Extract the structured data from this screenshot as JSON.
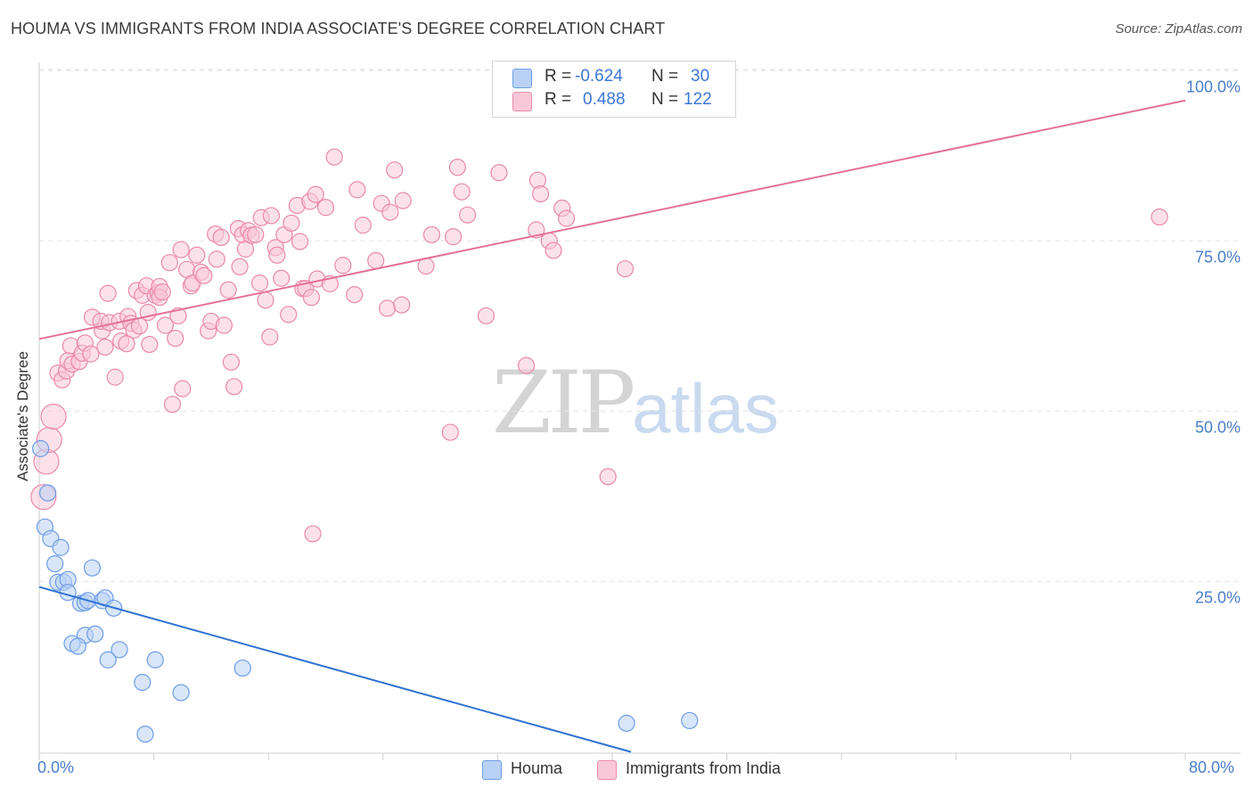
{
  "title": "HOUMA VS IMMIGRANTS FROM INDIA ASSOCIATE'S DEGREE CORRELATION CHART",
  "source": "Source: ZipAtlas.com",
  "watermark": {
    "zip": "ZIP",
    "atlas": "atlas"
  },
  "stats": {
    "rows": [
      {
        "r_label": "R =",
        "r_value": "-0.624",
        "n_label": "N =",
        "n_value": "30"
      },
      {
        "r_label": "R =",
        "r_value": "0.488",
        "n_label": "N =",
        "n_value": "122"
      }
    ]
  },
  "legend": {
    "items": [
      {
        "label": "Houma"
      },
      {
        "label": "Immigrants from India"
      }
    ]
  },
  "colors": {
    "houma_fill": "#b9d1f4",
    "houma_stroke": "#6d9de6",
    "houma_line": "#2f72d2",
    "india_fill": "#f9c8d8",
    "india_stroke": "#ea8aaa",
    "india_line": "#e4709a",
    "tick": "#4a7ec9",
    "grid": "#e3e3e3"
  },
  "chart_data": {
    "type": "scatter",
    "title": "HOUMA VS IMMIGRANTS FROM INDIA ASSOCIATE'S DEGREE CORRELATION CHART",
    "xlabel": "",
    "ylabel": "Associate's Degree",
    "xlim": [
      0,
      80
    ],
    "ylim": [
      0,
      102
    ],
    "x_tick_labels": [
      "0.0%",
      "80.0%"
    ],
    "y_tick_labels": [
      "100.0%",
      "75.0%",
      "50.0%",
      "25.0%"
    ],
    "y_ticks": [
      100,
      75,
      50,
      25
    ],
    "grid": true,
    "legend_position": "bottom-center",
    "series": [
      {
        "name": "Houma",
        "r": -0.624,
        "n": 30,
        "trend": {
          "x": [
            0,
            41.3
          ],
          "y": [
            24.2,
            0
          ]
        },
        "points": [
          {
            "x": 0.1,
            "y": 44.5
          },
          {
            "x": 0.6,
            "y": 38.0
          },
          {
            "x": 0.4,
            "y": 33.0
          },
          {
            "x": 0.8,
            "y": 31.3
          },
          {
            "x": 1.5,
            "y": 30.0
          },
          {
            "x": 1.1,
            "y": 27.6
          },
          {
            "x": 3.7,
            "y": 27.0
          },
          {
            "x": 1.3,
            "y": 24.9
          },
          {
            "x": 1.7,
            "y": 24.9
          },
          {
            "x": 2.0,
            "y": 25.3
          },
          {
            "x": 2.0,
            "y": 23.4
          },
          {
            "x": 2.9,
            "y": 21.8
          },
          {
            "x": 3.2,
            "y": 21.9
          },
          {
            "x": 3.4,
            "y": 22.2
          },
          {
            "x": 4.4,
            "y": 22.2
          },
          {
            "x": 4.6,
            "y": 22.6
          },
          {
            "x": 5.2,
            "y": 21.1
          },
          {
            "x": 3.2,
            "y": 17.1
          },
          {
            "x": 3.9,
            "y": 17.3
          },
          {
            "x": 2.3,
            "y": 15.9
          },
          {
            "x": 2.7,
            "y": 15.5
          },
          {
            "x": 5.6,
            "y": 15.0
          },
          {
            "x": 4.8,
            "y": 13.5
          },
          {
            "x": 8.1,
            "y": 13.5
          },
          {
            "x": 14.2,
            "y": 12.3
          },
          {
            "x": 7.2,
            "y": 10.2
          },
          {
            "x": 9.9,
            "y": 8.7
          },
          {
            "x": 7.4,
            "y": 2.6
          },
          {
            "x": 41.0,
            "y": 4.2
          },
          {
            "x": 45.4,
            "y": 4.6
          }
        ]
      },
      {
        "name": "Immigrants from India",
        "r": 0.488,
        "n": 122,
        "trend": {
          "x": [
            0,
            80
          ],
          "y": [
            60.6,
            95.6
          ]
        },
        "points": [
          {
            "x": 0.3,
            "y": 37.4
          },
          {
            "x": 0.5,
            "y": 42.6
          },
          {
            "x": 0.7,
            "y": 45.8
          },
          {
            "x": 1.0,
            "y": 49.2
          },
          {
            "x": 1.3,
            "y": 55.6
          },
          {
            "x": 1.6,
            "y": 54.6
          },
          {
            "x": 1.9,
            "y": 55.9
          },
          {
            "x": 2.0,
            "y": 57.4
          },
          {
            "x": 2.3,
            "y": 56.9
          },
          {
            "x": 2.2,
            "y": 59.6
          },
          {
            "x": 2.8,
            "y": 57.3
          },
          {
            "x": 3.0,
            "y": 58.5
          },
          {
            "x": 3.2,
            "y": 60.0
          },
          {
            "x": 3.6,
            "y": 58.4
          },
          {
            "x": 3.7,
            "y": 63.8
          },
          {
            "x": 4.4,
            "y": 61.8
          },
          {
            "x": 4.3,
            "y": 63.2
          },
          {
            "x": 4.9,
            "y": 63.0
          },
          {
            "x": 4.6,
            "y": 59.4
          },
          {
            "x": 4.8,
            "y": 67.3
          },
          {
            "x": 5.3,
            "y": 55.0
          },
          {
            "x": 5.6,
            "y": 63.2
          },
          {
            "x": 5.7,
            "y": 60.3
          },
          {
            "x": 6.1,
            "y": 59.9
          },
          {
            "x": 6.2,
            "y": 63.9
          },
          {
            "x": 6.4,
            "y": 62.9
          },
          {
            "x": 6.6,
            "y": 61.9
          },
          {
            "x": 6.8,
            "y": 67.7
          },
          {
            "x": 7.0,
            "y": 62.5
          },
          {
            "x": 7.2,
            "y": 67.0
          },
          {
            "x": 7.5,
            "y": 68.4
          },
          {
            "x": 7.6,
            "y": 64.5
          },
          {
            "x": 7.7,
            "y": 59.8
          },
          {
            "x": 8.1,
            "y": 67.0
          },
          {
            "x": 8.3,
            "y": 67.4
          },
          {
            "x": 8.4,
            "y": 68.3
          },
          {
            "x": 8.4,
            "y": 66.7
          },
          {
            "x": 8.6,
            "y": 67.5
          },
          {
            "x": 8.8,
            "y": 62.6
          },
          {
            "x": 9.1,
            "y": 71.8
          },
          {
            "x": 9.3,
            "y": 51.0
          },
          {
            "x": 9.5,
            "y": 60.7
          },
          {
            "x": 9.7,
            "y": 64.0
          },
          {
            "x": 9.9,
            "y": 73.7
          },
          {
            "x": 10.0,
            "y": 53.3
          },
          {
            "x": 10.3,
            "y": 70.8
          },
          {
            "x": 10.6,
            "y": 68.4
          },
          {
            "x": 10.7,
            "y": 68.8
          },
          {
            "x": 11.0,
            "y": 72.9
          },
          {
            "x": 11.3,
            "y": 70.4
          },
          {
            "x": 11.5,
            "y": 69.9
          },
          {
            "x": 11.8,
            "y": 61.8
          },
          {
            "x": 12.0,
            "y": 63.2
          },
          {
            "x": 12.3,
            "y": 76.0
          },
          {
            "x": 12.4,
            "y": 72.3
          },
          {
            "x": 12.7,
            "y": 75.5
          },
          {
            "x": 12.9,
            "y": 62.6
          },
          {
            "x": 13.2,
            "y": 67.8
          },
          {
            "x": 13.4,
            "y": 57.2
          },
          {
            "x": 13.6,
            "y": 53.6
          },
          {
            "x": 13.9,
            "y": 76.8
          },
          {
            "x": 14.0,
            "y": 71.2
          },
          {
            "x": 14.2,
            "y": 75.9
          },
          {
            "x": 14.4,
            "y": 73.8
          },
          {
            "x": 14.6,
            "y": 76.5
          },
          {
            "x": 14.8,
            "y": 75.8
          },
          {
            "x": 15.1,
            "y": 75.9
          },
          {
            "x": 15.4,
            "y": 68.8
          },
          {
            "x": 15.5,
            "y": 78.4
          },
          {
            "x": 15.8,
            "y": 66.3
          },
          {
            "x": 16.2,
            "y": 78.7
          },
          {
            "x": 16.1,
            "y": 60.9
          },
          {
            "x": 16.5,
            "y": 74.0
          },
          {
            "x": 16.6,
            "y": 72.9
          },
          {
            "x": 16.9,
            "y": 69.5
          },
          {
            "x": 17.1,
            "y": 75.9
          },
          {
            "x": 17.4,
            "y": 64.2
          },
          {
            "x": 17.6,
            "y": 77.6
          },
          {
            "x": 18.0,
            "y": 80.2
          },
          {
            "x": 18.2,
            "y": 74.9
          },
          {
            "x": 18.4,
            "y": 68.0
          },
          {
            "x": 18.6,
            "y": 68.0
          },
          {
            "x": 18.9,
            "y": 80.8
          },
          {
            "x": 19.0,
            "y": 66.7
          },
          {
            "x": 19.1,
            "y": 32.0
          },
          {
            "x": 19.3,
            "y": 81.8
          },
          {
            "x": 19.4,
            "y": 69.4
          },
          {
            "x": 20.0,
            "y": 79.9
          },
          {
            "x": 20.3,
            "y": 68.7
          },
          {
            "x": 20.6,
            "y": 87.3
          },
          {
            "x": 21.2,
            "y": 71.4
          },
          {
            "x": 22.0,
            "y": 67.1
          },
          {
            "x": 22.2,
            "y": 82.5
          },
          {
            "x": 22.6,
            "y": 77.3
          },
          {
            "x": 23.5,
            "y": 72.1
          },
          {
            "x": 23.9,
            "y": 80.5
          },
          {
            "x": 24.3,
            "y": 65.1
          },
          {
            "x": 24.5,
            "y": 79.2
          },
          {
            "x": 24.8,
            "y": 85.4
          },
          {
            "x": 25.3,
            "y": 65.6
          },
          {
            "x": 25.4,
            "y": 80.9
          },
          {
            "x": 27.0,
            "y": 71.3
          },
          {
            "x": 27.4,
            "y": 75.9
          },
          {
            "x": 28.7,
            "y": 46.9
          },
          {
            "x": 28.9,
            "y": 75.6
          },
          {
            "x": 29.2,
            "y": 85.8
          },
          {
            "x": 29.5,
            "y": 82.2
          },
          {
            "x": 29.9,
            "y": 78.8
          },
          {
            "x": 31.2,
            "y": 64.0
          },
          {
            "x": 32.1,
            "y": 85.0
          },
          {
            "x": 34.0,
            "y": 56.7
          },
          {
            "x": 34.7,
            "y": 76.6
          },
          {
            "x": 34.8,
            "y": 83.9
          },
          {
            "x": 35.0,
            "y": 81.9
          },
          {
            "x": 35.6,
            "y": 75.0
          },
          {
            "x": 35.9,
            "y": 73.6
          },
          {
            "x": 36.5,
            "y": 79.8
          },
          {
            "x": 36.8,
            "y": 78.3
          },
          {
            "x": 39.7,
            "y": 40.4
          },
          {
            "x": 40.9,
            "y": 70.9
          },
          {
            "x": 78.2,
            "y": 78.5
          }
        ]
      }
    ]
  }
}
